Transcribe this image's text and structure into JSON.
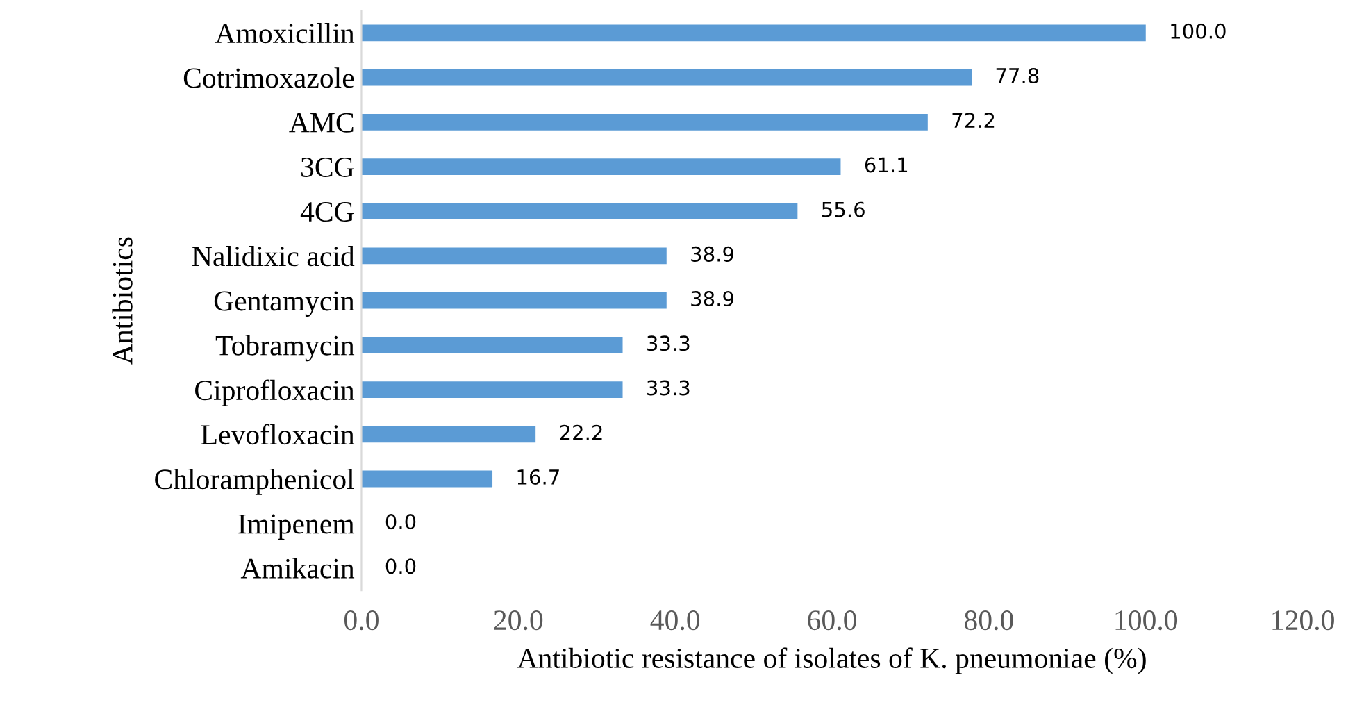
{
  "chart_data": {
    "type": "bar",
    "orientation": "horizontal",
    "xlabel": "Antibiotic resistance of isolates of K. pneumoniae (%)",
    "ylabel": "Antibiotics",
    "categories": [
      "Amoxicillin",
      "Cotrimoxazole",
      "AMC",
      "3CG",
      "4CG",
      "Nalidixic acid",
      "Gentamycin",
      "Tobramycin",
      "Ciprofloxacin",
      "Levofloxacin",
      "Chloramphenicol",
      "Imipenem",
      "Amikacin"
    ],
    "values": [
      100.0,
      77.8,
      72.2,
      61.1,
      55.6,
      38.9,
      38.9,
      33.3,
      33.3,
      22.2,
      16.7,
      0.0,
      0.0
    ],
    "value_labels": [
      "100.0",
      "77.8",
      "72.2",
      "61.1",
      "55.6",
      "38.9",
      "38.9",
      "33.3",
      "33.3",
      "22.2",
      "16.7",
      "0.0",
      "0.0"
    ],
    "color": "#5b9bd5",
    "xlim": [
      0,
      120
    ],
    "xticks": [
      {
        "value": 0,
        "label": "0.0"
      },
      {
        "value": 20,
        "label": "20.0"
      },
      {
        "value": 40,
        "label": "40.0"
      },
      {
        "value": 60,
        "label": "60.0"
      },
      {
        "value": 80,
        "label": "80.0"
      },
      {
        "value": 100,
        "label": "100.0"
      },
      {
        "value": 120,
        "label": "120.0"
      }
    ],
    "grid": false
  }
}
